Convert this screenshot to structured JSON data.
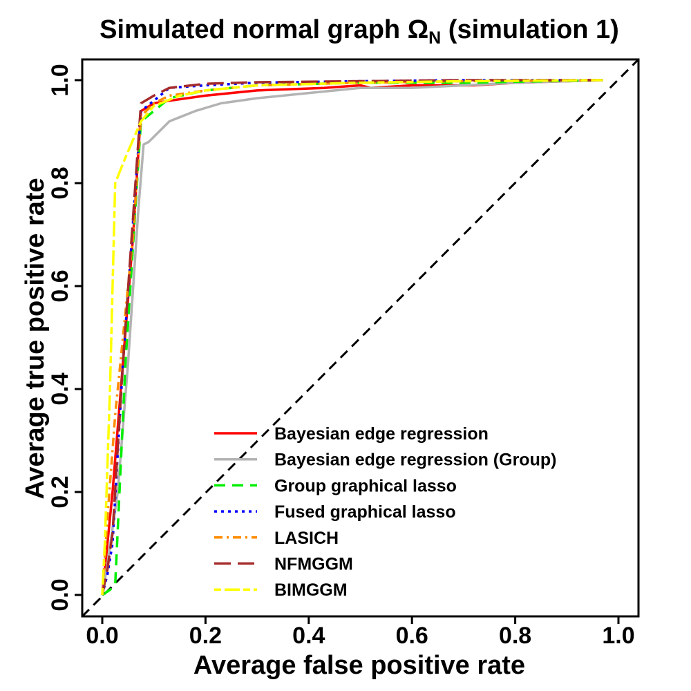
{
  "chart_data": {
    "type": "line",
    "title": {
      "prefix": "Simulated normal graph ",
      "symbol": "Ω",
      "subscript": "N",
      "suffix": " (simulation 1)"
    },
    "xlabel": "Average false positive rate",
    "ylabel": "Average true positive rate",
    "xlim": [
      0,
      1
    ],
    "ylim": [
      0,
      1
    ],
    "x_ticks": [
      0.0,
      0.2,
      0.4,
      0.6,
      0.8,
      1.0
    ],
    "y_ticks": [
      0.0,
      0.2,
      0.4,
      0.6,
      0.8,
      1.0
    ],
    "x_tick_labels": [
      "0.0",
      "0.2",
      "0.4",
      "0.6",
      "0.8",
      "1.0"
    ],
    "y_tick_labels": [
      "0.0",
      "0.2",
      "0.4",
      "0.6",
      "0.8",
      "1.0"
    ],
    "reference_line": {
      "x": [
        0,
        1
      ],
      "y": [
        0,
        1
      ],
      "color": "#000000",
      "dash": "dashed"
    },
    "legend_position": "bottom-right",
    "series": [
      {
        "name": "Bayesian edge regression",
        "color": "#ff0000",
        "dash": "solid",
        "x": [
          0.0,
          0.01,
          0.02,
          0.04,
          0.06,
          0.075,
          0.1,
          0.13,
          0.2,
          0.3,
          0.43,
          0.5,
          0.52,
          0.6,
          0.72,
          0.8,
          0.97
        ],
        "y": [
          0.0,
          0.1,
          0.2,
          0.45,
          0.7,
          0.94,
          0.955,
          0.96,
          0.97,
          0.98,
          0.985,
          0.99,
          0.985,
          0.99,
          0.99,
          0.995,
          1.0
        ]
      },
      {
        "name": "Bayesian edge regression (Group)",
        "color": "#b3b3b3",
        "dash": "solid",
        "x": [
          0.0,
          0.01,
          0.03,
          0.05,
          0.07,
          0.08,
          0.09,
          0.13,
          0.18,
          0.23,
          0.3,
          0.4,
          0.5,
          0.6,
          0.7,
          0.8,
          0.97
        ],
        "y": [
          0.0,
          0.06,
          0.2,
          0.45,
          0.75,
          0.875,
          0.88,
          0.92,
          0.94,
          0.955,
          0.965,
          0.975,
          0.985,
          0.985,
          0.99,
          0.995,
          1.0
        ]
      },
      {
        "name": "Group graphical lasso",
        "color": "#00ee00",
        "dash": "dashed",
        "x": [
          0.0,
          0.015,
          0.025,
          0.045,
          0.075,
          0.1,
          0.13,
          0.2,
          0.3,
          0.5,
          0.7,
          0.97
        ],
        "y": [
          0.0,
          0.01,
          0.02,
          0.45,
          0.92,
          0.94,
          0.965,
          0.98,
          0.99,
          0.995,
          0.995,
          1.0
        ]
      },
      {
        "name": "Fused graphical lasso",
        "color": "#0000ff",
        "dash": "dotted",
        "x": [
          0.0,
          0.01,
          0.02,
          0.04,
          0.075,
          0.1,
          0.13,
          0.2,
          0.3,
          0.5,
          0.7,
          0.97
        ],
        "y": [
          0.0,
          0.04,
          0.1,
          0.45,
          0.94,
          0.96,
          0.985,
          0.99,
          0.995,
          0.998,
          1.0,
          1.0
        ]
      },
      {
        "name": "LASICH",
        "color": "#ff8c00",
        "dash": "dashdot",
        "x": [
          0.0,
          0.01,
          0.025,
          0.04,
          0.06,
          0.075,
          0.1,
          0.13,
          0.2,
          0.3,
          0.5,
          0.7,
          0.97
        ],
        "y": [
          0.0,
          0.15,
          0.35,
          0.5,
          0.7,
          0.93,
          0.955,
          0.97,
          0.98,
          0.99,
          0.995,
          0.998,
          1.0
        ]
      },
      {
        "name": "NFMGGM",
        "color": "#a52a2a",
        "dash": "longdash",
        "x": [
          0.0,
          0.01,
          0.02,
          0.04,
          0.075,
          0.1,
          0.13,
          0.2,
          0.3,
          0.5,
          0.7,
          0.97
        ],
        "y": [
          0.0,
          0.05,
          0.12,
          0.45,
          0.955,
          0.97,
          0.985,
          0.993,
          0.996,
          0.998,
          1.0,
          1.0
        ]
      },
      {
        "name": "BIMGGM",
        "color": "#ffff00",
        "dash": "twodash",
        "x": [
          0.0,
          0.005,
          0.015,
          0.025,
          0.045,
          0.075,
          0.1,
          0.15,
          0.2,
          0.3,
          0.5,
          0.7,
          0.97
        ],
        "y": [
          0.0,
          0.1,
          0.4,
          0.8,
          0.85,
          0.92,
          0.95,
          0.97,
          0.98,
          0.99,
          0.995,
          0.998,
          1.0
        ]
      }
    ]
  }
}
